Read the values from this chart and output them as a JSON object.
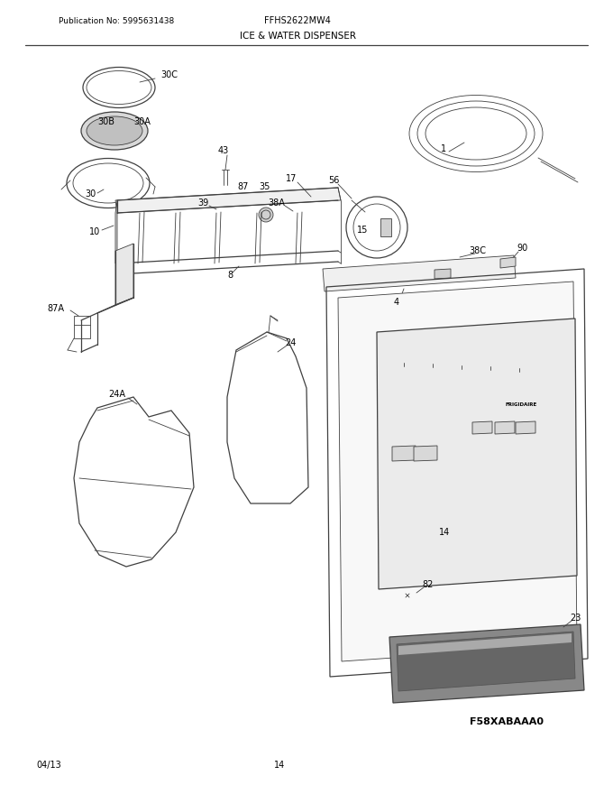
{
  "pub_no": "Publication No: 5995631438",
  "model": "FFHS2622MW4",
  "title": "ICE & WATER DISPENSER",
  "image_code": "F58XABAAA0",
  "date": "04/13",
  "page": "14",
  "bg_color": "#ffffff",
  "line_color": "#404040",
  "label_color": "#000000",
  "lw_thin": 0.6,
  "lw_med": 0.9,
  "lw_thick": 1.3
}
